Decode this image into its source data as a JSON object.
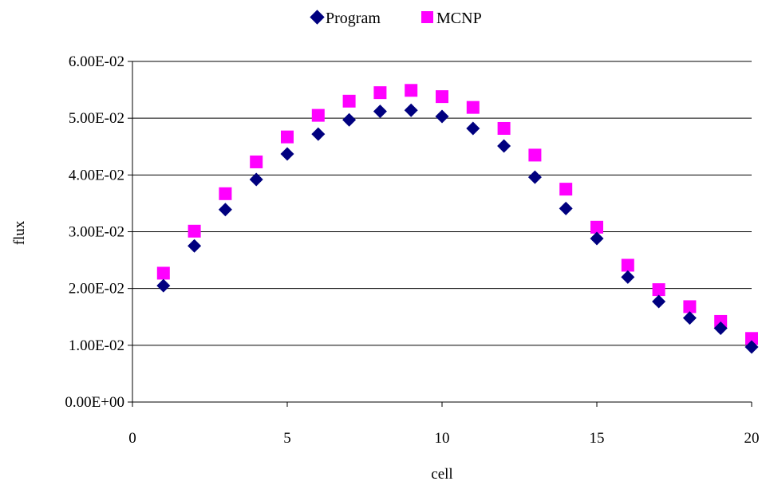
{
  "chart_data": {
    "type": "scatter",
    "xlabel": "cell",
    "ylabel": "flux",
    "xlim": [
      0,
      20
    ],
    "ylim": [
      0,
      0.06
    ],
    "x_ticks": [
      0,
      5,
      10,
      15,
      20
    ],
    "x_tick_labels": [
      "0",
      "5",
      "10",
      "15",
      "20"
    ],
    "y_ticks": [
      0,
      0.01,
      0.02,
      0.03,
      0.04,
      0.05,
      0.06
    ],
    "y_tick_labels": [
      "0.00E+00",
      "1.00E-02",
      "2.00E-02",
      "3.00E-02",
      "4.00E-02",
      "5.00E-02",
      "6.00E-02"
    ],
    "grid": "horizontal",
    "legend_position": "top-center",
    "series": [
      {
        "name": "Program",
        "marker": "diamond",
        "color": "#00007f",
        "x": [
          1,
          2,
          3,
          4,
          5,
          6,
          7,
          8,
          9,
          10,
          11,
          12,
          13,
          14,
          15,
          16,
          17,
          18,
          19,
          20
        ],
        "y": [
          0.0205,
          0.0275,
          0.0339,
          0.0392,
          0.0437,
          0.0472,
          0.0497,
          0.0512,
          0.0514,
          0.0503,
          0.0482,
          0.0451,
          0.0396,
          0.0341,
          0.0288,
          0.022,
          0.0177,
          0.0148,
          0.013,
          0.0097
        ]
      },
      {
        "name": "MCNP",
        "marker": "square",
        "color": "#ff00ff",
        "x": [
          1,
          2,
          3,
          4,
          5,
          6,
          7,
          8,
          9,
          10,
          11,
          12,
          13,
          14,
          15,
          16,
          17,
          18,
          19,
          20
        ],
        "y": [
          0.0227,
          0.0301,
          0.0367,
          0.0423,
          0.0467,
          0.0505,
          0.053,
          0.0545,
          0.0549,
          0.0538,
          0.0519,
          0.0482,
          0.0435,
          0.0375,
          0.0308,
          0.0241,
          0.0198,
          0.0168,
          0.0142,
          0.0112
        ]
      }
    ]
  }
}
